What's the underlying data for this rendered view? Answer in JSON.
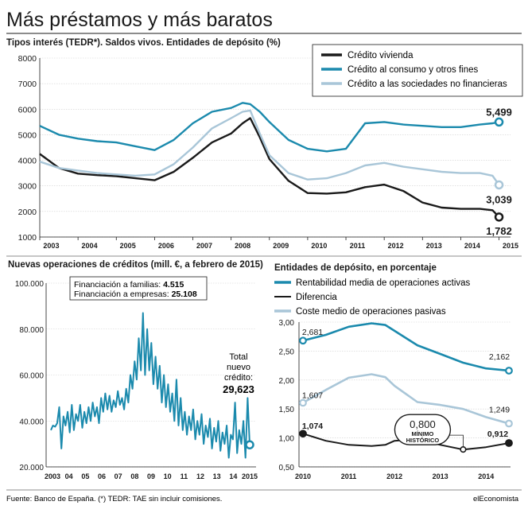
{
  "title": "Más préstamos y más baratos",
  "source": "Fuente: Banco de España. (*) TEDR: TAE sin incluir comisiones.",
  "brand": "elEconomista",
  "colors": {
    "dark": "#1a1a1a",
    "teal": "#1b8aad",
    "light": "#a9c6d8",
    "grid": "#d0d0d0"
  },
  "chart_data": [
    {
      "type": "line",
      "title": "Tipos interés (TEDR*). Saldos vivos. Entidades de depósito (%)",
      "x": [
        2003,
        2003.5,
        2004,
        2004.5,
        2005,
        2005.5,
        2006,
        2006.5,
        2007,
        2007.5,
        2008,
        2008.3,
        2008.5,
        2008.75,
        2009,
        2009.5,
        2010,
        2010.5,
        2011,
        2011.5,
        2012,
        2012.5,
        2013,
        2013.5,
        2014,
        2014.5,
        2014.83,
        2015
      ],
      "x_ticks": [
        "2003",
        "2004",
        "2005",
        "2006",
        "2007",
        "2008",
        "2009",
        "2010",
        "2011",
        "2012",
        "2013",
        "2014",
        "2015"
      ],
      "y_ticks": [
        "1000",
        "2000",
        "3000",
        "4000",
        "5000",
        "6000",
        "7000",
        "8000"
      ],
      "ylim": [
        1000,
        8000
      ],
      "legend": "top-right",
      "series": [
        {
          "name": "Crédito vivienda",
          "color": "#1a1a1a",
          "values": [
            4250,
            3700,
            3480,
            3420,
            3380,
            3300,
            3220,
            3550,
            4100,
            4700,
            5050,
            5450,
            5650,
            4900,
            4050,
            3200,
            2720,
            2700,
            2750,
            2950,
            3050,
            2800,
            2350,
            2150,
            2100,
            2100,
            2050,
            1782
          ],
          "end_label": "1,782"
        },
        {
          "name": "Crédito al consumo y otros fines",
          "color": "#1b8aad",
          "values": [
            5350,
            5000,
            4850,
            4750,
            4700,
            4550,
            4400,
            4800,
            5450,
            5900,
            6050,
            6250,
            6200,
            5900,
            5500,
            4800,
            4450,
            4350,
            4450,
            5450,
            5500,
            5400,
            5350,
            5300,
            5300,
            5400,
            5450,
            5499
          ],
          "end_label": "5,499"
        },
        {
          "name": "Crédito a las sociedades no financieras",
          "color": "#a9c6d8",
          "values": [
            3950,
            3700,
            3600,
            3500,
            3450,
            3400,
            3450,
            3850,
            4500,
            5250,
            5650,
            5900,
            5950,
            5050,
            4200,
            3500,
            3250,
            3300,
            3500,
            3800,
            3900,
            3750,
            3650,
            3550,
            3500,
            3500,
            3400,
            3039
          ],
          "end_label": "3,039"
        }
      ]
    },
    {
      "type": "line",
      "title": "Nuevas operaciones de  créditos (mill. €, a febrero de 2015)",
      "x_ticks": [
        "2003",
        "04",
        "05",
        "06",
        "07",
        "08",
        "09",
        "10",
        "11",
        "12",
        "13",
        "14",
        "2015"
      ],
      "y_ticks": [
        "20.000",
        "40.000",
        "60.000",
        "80.000",
        "100.000"
      ],
      "ylim": [
        20000,
        100000
      ],
      "series": [
        {
          "name": "Total nuevo crédito",
          "color": "#1b8aad",
          "values": [
            36000,
            38000,
            37500,
            39000,
            46000,
            28000,
            42000,
            38000,
            44000,
            35000,
            47000,
            36000,
            43000,
            40000,
            47000,
            37000,
            44000,
            39000,
            46000,
            40000,
            48000,
            42000,
            46000,
            39000,
            50000,
            44000,
            52000,
            45000,
            51000,
            44000,
            49000,
            46000,
            53000,
            47000,
            50000,
            45000,
            54000,
            48000,
            60000,
            54000,
            66000,
            58000,
            76000,
            62000,
            87000,
            60000,
            80000,
            62000,
            74000,
            56000,
            68000,
            54000,
            64000,
            48000,
            60000,
            46000,
            56000,
            44000,
            52000,
            40000,
            58000,
            38000,
            50000,
            36000,
            44000,
            34000,
            42000,
            36000,
            45000,
            32000,
            40000,
            34000,
            43000,
            30000,
            38000,
            33000,
            41000,
            28000,
            37000,
            31000,
            40000,
            27000,
            35000,
            30000,
            38000,
            24000,
            34000,
            32000,
            48000,
            26000,
            36000,
            30000,
            40000,
            24000,
            50000,
            29623
          ]
        }
      ],
      "annotation": {
        "lines": [
          "Financiación a familias: ",
          "Financiación a empresas: "
        ],
        "values": [
          "4.515",
          "25.108"
        ]
      },
      "total_label": [
        "Total",
        "nuevo",
        "crédito:"
      ],
      "total_value": "29,623"
    },
    {
      "type": "line",
      "title": "Entidades de depósito, en porcentaje",
      "x": [
        2010,
        2010.5,
        2011,
        2011.5,
        2011.8,
        2012,
        2012.5,
        2013,
        2013.5,
        2014,
        2014.5
      ],
      "x_ticks": [
        "2010",
        "2011",
        "2012",
        "2013",
        "2014"
      ],
      "y_ticks": [
        "0,50",
        "1,00",
        "1,50",
        "2,00",
        "2,50",
        "3,00"
      ],
      "ylim": [
        0.5,
        3.0
      ],
      "legend": "top",
      "series": [
        {
          "name": "Rentabilidad media de operaciones activas",
          "color": "#1b8aad",
          "values": [
            2.681,
            2.78,
            2.92,
            2.98,
            2.95,
            2.85,
            2.6,
            2.45,
            2.3,
            2.2,
            2.162
          ],
          "start_label": "2,681",
          "end_label": "2,162"
        },
        {
          "name": "Diferencia",
          "color": "#1a1a1a",
          "values": [
            1.074,
            0.95,
            0.88,
            0.86,
            0.88,
            0.95,
            0.98,
            0.88,
            0.8,
            0.84,
            0.912
          ],
          "start_label": "1,074",
          "end_label": "0,912"
        },
        {
          "name": "Coste medio de operaciones pasivas",
          "color": "#a9c6d8",
          "values": [
            1.607,
            1.83,
            2.04,
            2.1,
            2.05,
            1.9,
            1.62,
            1.57,
            1.5,
            1.36,
            1.249
          ],
          "start_label": "1,607",
          "end_label": "1,249"
        }
      ],
      "annotation": {
        "value": "0,800",
        "text": [
          "MÍNIMO",
          "HISTÓRICO"
        ]
      }
    }
  ]
}
